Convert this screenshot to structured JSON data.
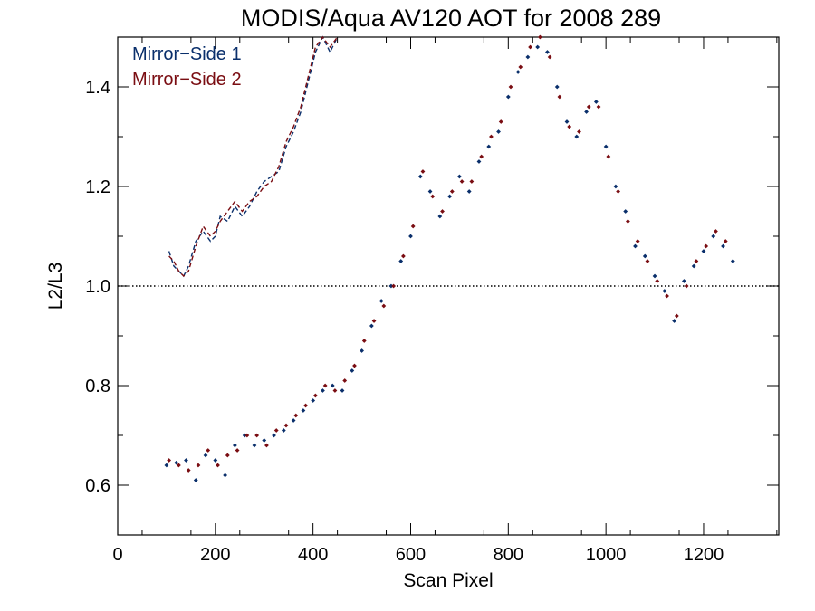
{
  "chart_data": {
    "type": "scatter",
    "title": "MODIS/Aqua AV120 AOT for 2008 289",
    "xlabel": "Scan Pixel",
    "ylabel": "L2/L3",
    "xlim": [
      0,
      1354
    ],
    "ylim": [
      0.5,
      1.5
    ],
    "x_ticks": [
      "0",
      "200",
      "400",
      "600",
      "800",
      "1000",
      "1200"
    ],
    "y_ticks": [
      "0.6",
      "0.8",
      "1.0",
      "1.2",
      "1.4"
    ],
    "reference_line_y": 1.0,
    "legend": {
      "position": "top-left"
    },
    "series": [
      {
        "name": "Mirror−Side 1",
        "color": "#0a2f6b",
        "x": [
          100,
          120,
          140,
          160,
          180,
          200,
          220,
          240,
          260,
          280,
          300,
          320,
          340,
          360,
          380,
          400,
          420,
          440,
          460,
          480,
          500,
          520,
          540,
          560,
          580,
          600,
          620,
          640,
          660,
          680,
          700,
          720,
          740,
          760,
          780,
          800,
          820,
          840,
          860,
          880,
          900,
          920,
          940,
          960,
          980,
          1000,
          1020,
          1040,
          1060,
          1080,
          1100,
          1120,
          1140,
          1160,
          1180,
          1200,
          1220,
          1240,
          1260
        ],
        "y": [
          0.64,
          0.645,
          0.65,
          0.61,
          0.66,
          0.65,
          0.62,
          0.68,
          0.7,
          0.68,
          0.69,
          0.7,
          0.71,
          0.73,
          0.75,
          0.77,
          0.79,
          0.8,
          0.79,
          0.83,
          0.87,
          0.92,
          0.97,
          1.0,
          1.05,
          1.1,
          1.22,
          1.19,
          1.14,
          1.18,
          1.22,
          1.19,
          1.25,
          1.28,
          1.31,
          1.38,
          1.43,
          1.46,
          1.48,
          1.47,
          1.4,
          1.33,
          1.3,
          1.35,
          1.37,
          1.28,
          1.2,
          1.15,
          1.08,
          1.06,
          1.02,
          0.99,
          0.93,
          1.01,
          1.04,
          1.07,
          1.1,
          1.08,
          1.05
        ],
        "dashed_curve": {
          "x": [
            105,
            115,
            125,
            135,
            145,
            160,
            175,
            190,
            200,
            210,
            225,
            240,
            255,
            270,
            285,
            300,
            315,
            330,
            345,
            360,
            375,
            390,
            405,
            420,
            435,
            450
          ],
          "y": [
            1.07,
            1.04,
            1.03,
            1.02,
            1.04,
            1.09,
            1.11,
            1.09,
            1.1,
            1.14,
            1.13,
            1.16,
            1.14,
            1.16,
            1.19,
            1.21,
            1.22,
            1.23,
            1.28,
            1.31,
            1.35,
            1.41,
            1.47,
            1.5,
            1.47,
            1.5
          ]
        }
      },
      {
        "name": "Mirror−Side 2",
        "color": "#7a0d12",
        "x": [
          105,
          125,
          145,
          165,
          185,
          205,
          225,
          245,
          265,
          285,
          305,
          325,
          345,
          365,
          385,
          405,
          425,
          445,
          465,
          485,
          505,
          525,
          545,
          565,
          585,
          605,
          625,
          645,
          665,
          685,
          705,
          725,
          745,
          765,
          785,
          805,
          825,
          845,
          865,
          885,
          905,
          925,
          945,
          965,
          985,
          1005,
          1025,
          1045,
          1065,
          1085,
          1105,
          1125,
          1145,
          1165,
          1185,
          1205,
          1225,
          1245
        ],
        "y": [
          0.65,
          0.64,
          0.63,
          0.64,
          0.67,
          0.64,
          0.66,
          0.67,
          0.7,
          0.7,
          0.68,
          0.71,
          0.72,
          0.74,
          0.76,
          0.78,
          0.8,
          0.79,
          0.81,
          0.84,
          0.89,
          0.93,
          0.96,
          1.0,
          1.06,
          1.12,
          1.23,
          1.18,
          1.15,
          1.19,
          1.21,
          1.21,
          1.26,
          1.3,
          1.33,
          1.4,
          1.44,
          1.48,
          1.5,
          1.46,
          1.38,
          1.32,
          1.31,
          1.36,
          1.36,
          1.26,
          1.19,
          1.13,
          1.09,
          1.05,
          1.01,
          0.98,
          0.94,
          1.0,
          1.05,
          1.08,
          1.11,
          1.09
        ],
        "dashed_curve": {
          "x": [
            105,
            115,
            125,
            135,
            145,
            160,
            175,
            190,
            200,
            210,
            225,
            240,
            255,
            270,
            285,
            300,
            315,
            330,
            345,
            360,
            375,
            390,
            405,
            420,
            435,
            450
          ],
          "y": [
            1.06,
            1.05,
            1.03,
            1.02,
            1.03,
            1.08,
            1.12,
            1.1,
            1.11,
            1.13,
            1.15,
            1.17,
            1.15,
            1.17,
            1.18,
            1.2,
            1.21,
            1.24,
            1.29,
            1.32,
            1.36,
            1.42,
            1.48,
            1.5,
            1.48,
            1.5
          ]
        }
      }
    ]
  }
}
